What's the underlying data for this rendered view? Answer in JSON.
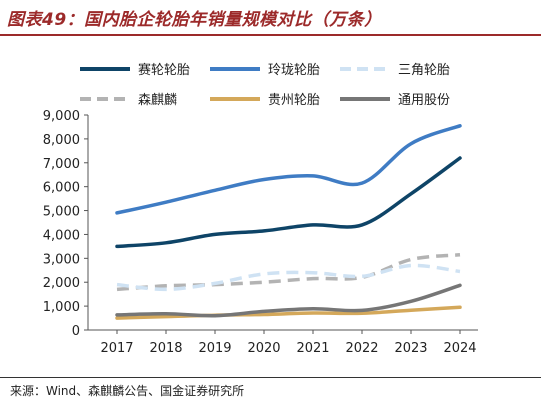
{
  "header": {
    "title": "图表49：国内胎企轮胎年销量规模对比（万条）"
  },
  "footer": {
    "source": "来源：Wind、森麒麟公告、国金证券研究所"
  },
  "chart_data": {
    "type": "line",
    "title": "图表49：国内胎企轮胎年销量规模对比（万条）",
    "xlabel": "",
    "ylabel": "",
    "x": [
      "2017",
      "2018",
      "2019",
      "2020",
      "2021",
      "2022",
      "2023",
      "2024"
    ],
    "ylim": [
      0,
      9000
    ],
    "yticks": [
      0,
      1000,
      2000,
      3000,
      4000,
      5000,
      6000,
      7000,
      8000,
      9000
    ],
    "ytick_labels": [
      "0",
      "1,000",
      "2,000",
      "3,000",
      "4,000",
      "5,000",
      "6,000",
      "7,000",
      "8,000",
      "9,000"
    ],
    "grid": false,
    "legend_position": "top",
    "series": [
      {
        "name": "赛轮轮胎",
        "color": "#0e4467",
        "style": "solid",
        "values": [
          3500,
          3650,
          4000,
          4150,
          4400,
          4400,
          5700,
          7200
        ]
      },
      {
        "name": "玲珑轮胎",
        "color": "#3f7cc4",
        "style": "solid",
        "values": [
          4900,
          5350,
          5850,
          6300,
          6450,
          6150,
          7800,
          8550
        ]
      },
      {
        "name": "三角轮胎",
        "color": "#cfe2f3",
        "style": "dashed",
        "values": [
          1900,
          1700,
          1950,
          2350,
          2400,
          2250,
          2700,
          2450
        ]
      },
      {
        "name": "森麒麟",
        "color": "#b3b3b3",
        "style": "dashed",
        "values": [
          1700,
          1850,
          1900,
          2000,
          2150,
          2200,
          2950,
          3150
        ]
      },
      {
        "name": "贵州轮胎",
        "color": "#d4a85a",
        "style": "solid",
        "values": [
          500,
          560,
          620,
          650,
          710,
          700,
          830,
          950
        ]
      },
      {
        "name": "通用股份",
        "color": "#767676",
        "style": "solid",
        "values": [
          630,
          680,
          600,
          780,
          890,
          820,
          1200,
          1870
        ]
      }
    ]
  }
}
